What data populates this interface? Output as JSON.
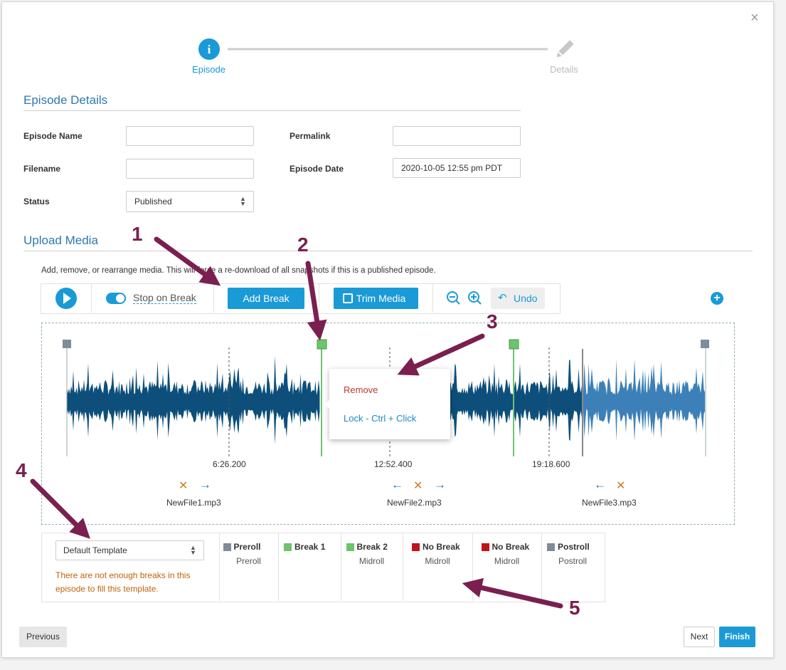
{
  "close": "×",
  "stepper": {
    "steps": [
      {
        "label": "Episode",
        "icon": "i"
      },
      {
        "label": "Details"
      }
    ]
  },
  "episode_details": {
    "title": "Episode Details",
    "fields": [
      {
        "label": "Episode Name",
        "value": ""
      },
      {
        "label": "Permalink",
        "value": ""
      },
      {
        "label": "Filename",
        "value": ""
      },
      {
        "label": "Episode Date",
        "value": "2020-10-05 12:55 pm PDT"
      },
      {
        "label": "Status",
        "value": "Published"
      }
    ]
  },
  "upload_media": {
    "title": "Upload Media",
    "description": "Add, remove, or rearrange media. This will force a re-download of all snapshots if this is a published episode.",
    "toolbar": {
      "stop_on_break": "Stop on Break",
      "add_break": "Add Break",
      "trim_media": "Trim Media",
      "undo": "Undo"
    },
    "timeline": {
      "time_labels": [
        "6:26.200",
        "12:52.400",
        "19:18.600"
      ],
      "files": [
        "NewFile1.mp3",
        "NewFile2.mp3",
        "NewFile3.mp3"
      ]
    },
    "context_menu": {
      "remove": "Remove",
      "lock": "Lock - Ctrl + Click"
    },
    "template": {
      "selected": "Default Template",
      "warning": "There are not enough breaks in this episode to fill this template."
    },
    "breaks": [
      {
        "name": "Preroll",
        "type": "Preroll",
        "color": "#7f8c99"
      },
      {
        "name": "Break 1",
        "type": "",
        "color": "#6cc46c"
      },
      {
        "name": "Break 2",
        "type": "Midroll",
        "color": "#6cc46c"
      },
      {
        "name": "No Break",
        "type": "Midroll",
        "color": "#c0141c"
      },
      {
        "name": "No Break",
        "type": "Midroll",
        "color": "#c0141c"
      },
      {
        "name": "Postroll",
        "type": "Postroll",
        "color": "#7f8c99"
      }
    ]
  },
  "footer": {
    "previous": "Previous",
    "next": "Next",
    "finish": "Finish"
  },
  "annotations": [
    "1",
    "2",
    "3",
    "4",
    "5"
  ]
}
